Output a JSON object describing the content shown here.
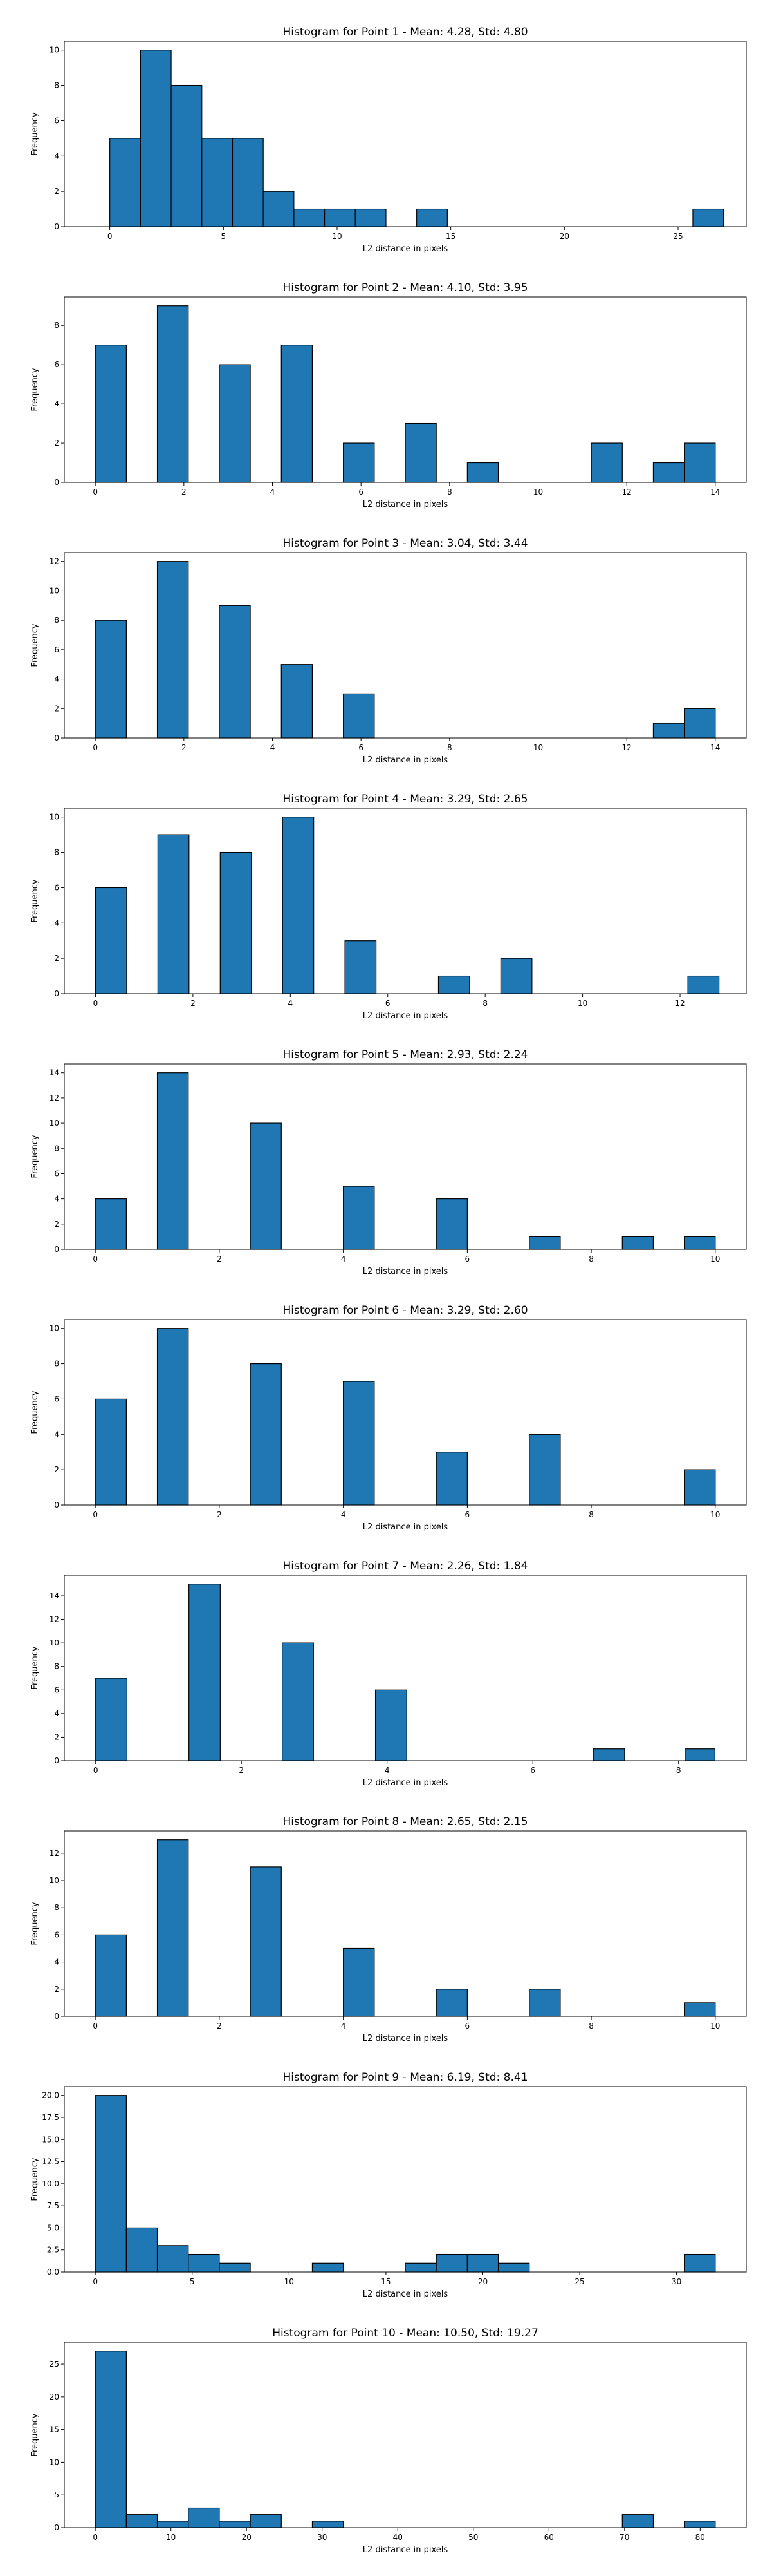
{
  "chart_data": [
    {
      "type": "bar",
      "title": "Histogram for Point 1 - Mean: 4.28, Std: 4.80",
      "xlabel": "L2 distance in pixels",
      "ylabel": "Frequency",
      "xlim": [
        -2,
        28
      ],
      "ylim": [
        0,
        10.5
      ],
      "xticks": [
        0,
        5,
        10,
        15,
        20,
        25
      ],
      "yticks": [
        0,
        2,
        4,
        6,
        8,
        10
      ],
      "bins": [
        {
          "x0": 0.0,
          "x1": 1.35,
          "y": 5
        },
        {
          "x0": 1.35,
          "x1": 2.7,
          "y": 10
        },
        {
          "x0": 2.7,
          "x1": 4.05,
          "y": 8
        },
        {
          "x0": 4.05,
          "x1": 5.4,
          "y": 5
        },
        {
          "x0": 5.4,
          "x1": 6.75,
          "y": 5
        },
        {
          "x0": 6.75,
          "x1": 8.1,
          "y": 2
        },
        {
          "x0": 8.1,
          "x1": 9.45,
          "y": 1
        },
        {
          "x0": 9.45,
          "x1": 10.8,
          "y": 1
        },
        {
          "x0": 10.8,
          "x1": 12.15,
          "y": 1
        },
        {
          "x0": 13.5,
          "x1": 14.85,
          "y": 1
        },
        {
          "x0": 25.65,
          "x1": 27.0,
          "y": 1
        }
      ]
    },
    {
      "type": "bar",
      "title": "Histogram for Point 2 - Mean: 4.10, Std: 3.95",
      "xlabel": "L2 distance in pixels",
      "ylabel": "Frequency",
      "xlim": [
        -0.7,
        14.7
      ],
      "ylim": [
        0,
        9.45
      ],
      "xticks": [
        0,
        2,
        4,
        6,
        8,
        10,
        12,
        14
      ],
      "yticks": [
        0,
        2,
        4,
        6,
        8
      ],
      "bins": [
        {
          "x0": 0.0,
          "x1": 0.7,
          "y": 7
        },
        {
          "x0": 1.4,
          "x1": 2.1,
          "y": 9
        },
        {
          "x0": 2.8,
          "x1": 3.5,
          "y": 6
        },
        {
          "x0": 4.2,
          "x1": 4.9,
          "y": 7
        },
        {
          "x0": 5.6,
          "x1": 6.3,
          "y": 2
        },
        {
          "x0": 7.0,
          "x1": 7.7,
          "y": 3
        },
        {
          "x0": 8.4,
          "x1": 9.1,
          "y": 1
        },
        {
          "x0": 11.2,
          "x1": 11.9,
          "y": 2
        },
        {
          "x0": 12.6,
          "x1": 13.3,
          "y": 1
        },
        {
          "x0": 13.3,
          "x1": 14.0,
          "y": 2
        }
      ]
    },
    {
      "type": "bar",
      "title": "Histogram for Point 3 - Mean: 3.04, Std: 3.44",
      "xlabel": "L2 distance in pixels",
      "ylabel": "Frequency",
      "xlim": [
        -0.7,
        14.7
      ],
      "ylim": [
        0,
        12.6
      ],
      "xticks": [
        0,
        2,
        4,
        6,
        8,
        10,
        12,
        14
      ],
      "yticks": [
        0,
        2,
        4,
        6,
        8,
        10,
        12
      ],
      "bins": [
        {
          "x0": 0.0,
          "x1": 0.7,
          "y": 8
        },
        {
          "x0": 1.4,
          "x1": 2.1,
          "y": 12
        },
        {
          "x0": 2.8,
          "x1": 3.5,
          "y": 9
        },
        {
          "x0": 4.2,
          "x1": 4.9,
          "y": 5
        },
        {
          "x0": 5.6,
          "x1": 6.3,
          "y": 3
        },
        {
          "x0": 12.6,
          "x1": 13.3,
          "y": 1
        },
        {
          "x0": 13.3,
          "x1": 14.0,
          "y": 2
        }
      ]
    },
    {
      "type": "bar",
      "title": "Histogram for Point 4 - Mean: 3.29, Std: 2.65",
      "xlabel": "L2 distance in pixels",
      "ylabel": "Frequency",
      "xlim": [
        -0.64,
        13.36
      ],
      "ylim": [
        0,
        10.5
      ],
      "xticks": [
        0,
        2,
        4,
        6,
        8,
        10,
        12
      ],
      "yticks": [
        0,
        2,
        4,
        6,
        8,
        10
      ],
      "bins": [
        {
          "x0": 0.0,
          "x1": 0.64,
          "y": 6
        },
        {
          "x0": 1.28,
          "x1": 1.92,
          "y": 9
        },
        {
          "x0": 2.56,
          "x1": 3.2,
          "y": 8
        },
        {
          "x0": 3.84,
          "x1": 4.48,
          "y": 10
        },
        {
          "x0": 5.12,
          "x1": 5.76,
          "y": 3
        },
        {
          "x0": 7.04,
          "x1": 7.68,
          "y": 1
        },
        {
          "x0": 8.32,
          "x1": 8.96,
          "y": 2
        },
        {
          "x0": 12.16,
          "x1": 12.8,
          "y": 1
        }
      ]
    },
    {
      "type": "bar",
      "title": "Histogram for Point 5 - Mean: 2.93, Std: 2.24",
      "xlabel": "L2 distance in pixels",
      "ylabel": "Frequency",
      "xlim": [
        -0.5,
        10.5
      ],
      "ylim": [
        0,
        14.7
      ],
      "xticks": [
        0,
        2,
        4,
        6,
        8,
        10
      ],
      "yticks": [
        0,
        2,
        4,
        6,
        8,
        10,
        12,
        14
      ],
      "bins": [
        {
          "x0": 0.0,
          "x1": 0.5,
          "y": 4
        },
        {
          "x0": 1.0,
          "x1": 1.5,
          "y": 14
        },
        {
          "x0": 2.5,
          "x1": 3.0,
          "y": 10
        },
        {
          "x0": 4.0,
          "x1": 4.5,
          "y": 5
        },
        {
          "x0": 5.5,
          "x1": 6.0,
          "y": 4
        },
        {
          "x0": 7.0,
          "x1": 7.5,
          "y": 1
        },
        {
          "x0": 8.5,
          "x1": 9.0,
          "y": 1
        },
        {
          "x0": 9.5,
          "x1": 10.0,
          "y": 1
        }
      ]
    },
    {
      "type": "bar",
      "title": "Histogram for Point 6 - Mean: 3.29, Std: 2.60",
      "xlabel": "L2 distance in pixels",
      "ylabel": "Frequency",
      "xlim": [
        -0.5,
        10.5
      ],
      "ylim": [
        0,
        10.5
      ],
      "xticks": [
        0,
        2,
        4,
        6,
        8,
        10
      ],
      "yticks": [
        0,
        2,
        4,
        6,
        8,
        10
      ],
      "bins": [
        {
          "x0": 0.0,
          "x1": 0.5,
          "y": 6
        },
        {
          "x0": 1.0,
          "x1": 1.5,
          "y": 10
        },
        {
          "x0": 2.5,
          "x1": 3.0,
          "y": 8
        },
        {
          "x0": 4.0,
          "x1": 4.5,
          "y": 7
        },
        {
          "x0": 5.5,
          "x1": 6.0,
          "y": 3
        },
        {
          "x0": 7.0,
          "x1": 7.5,
          "y": 4
        },
        {
          "x0": 9.5,
          "x1": 10.0,
          "y": 2
        }
      ]
    },
    {
      "type": "bar",
      "title": "Histogram for Point 7 - Mean: 2.26, Std: 1.84",
      "xlabel": "L2 distance in pixels",
      "ylabel": "Frequency",
      "xlim": [
        -0.43,
        8.93
      ],
      "ylim": [
        0,
        15.75
      ],
      "xticks": [
        0,
        2,
        4,
        6,
        8
      ],
      "yticks": [
        0,
        2,
        4,
        6,
        8,
        10,
        12,
        14
      ],
      "bins": [
        {
          "x0": 0.0,
          "x1": 0.43,
          "y": 7
        },
        {
          "x0": 1.28,
          "x1": 1.71,
          "y": 15
        },
        {
          "x0": 2.56,
          "x1": 2.99,
          "y": 10
        },
        {
          "x0": 3.84,
          "x1": 4.27,
          "y": 6
        },
        {
          "x0": 6.83,
          "x1": 7.26,
          "y": 1
        },
        {
          "x0": 8.09,
          "x1": 8.5,
          "y": 1
        }
      ]
    },
    {
      "type": "bar",
      "title": "Histogram for Point 8 - Mean: 2.65, Std: 2.15",
      "xlabel": "L2 distance in pixels",
      "ylabel": "Frequency",
      "xlim": [
        -0.5,
        10.5
      ],
      "ylim": [
        0,
        13.65
      ],
      "xticks": [
        0,
        2,
        4,
        6,
        8,
        10
      ],
      "yticks": [
        0,
        2,
        4,
        6,
        8,
        10,
        12
      ],
      "bins": [
        {
          "x0": 0.0,
          "x1": 0.5,
          "y": 6
        },
        {
          "x0": 1.0,
          "x1": 1.5,
          "y": 13
        },
        {
          "x0": 2.5,
          "x1": 3.0,
          "y": 11
        },
        {
          "x0": 4.0,
          "x1": 4.5,
          "y": 5
        },
        {
          "x0": 5.5,
          "x1": 6.0,
          "y": 2
        },
        {
          "x0": 7.0,
          "x1": 7.5,
          "y": 2
        },
        {
          "x0": 9.5,
          "x1": 10.0,
          "y": 1
        }
      ]
    },
    {
      "type": "bar",
      "title": "Histogram for Point 9 - Mean: 6.19, Std: 8.41",
      "xlabel": "L2 distance in pixels",
      "ylabel": "Frequency",
      "xlim": [
        -1.6,
        33.6
      ],
      "ylim": [
        0,
        21.0
      ],
      "xticks": [
        0,
        5,
        10,
        15,
        20,
        25,
        30
      ],
      "yticks": [
        0.0,
        2.5,
        5.0,
        7.5,
        10.0,
        12.5,
        15.0,
        17.5,
        20.0
      ],
      "ytick_labels": [
        "0.0",
        "2.5",
        "5.0",
        "7.5",
        "10.0",
        "12.5",
        "15.0",
        "17.5",
        "20.0"
      ],
      "bins": [
        {
          "x0": 0.0,
          "x1": 1.6,
          "y": 20
        },
        {
          "x0": 1.6,
          "x1": 3.2,
          "y": 5
        },
        {
          "x0": 3.2,
          "x1": 4.8,
          "y": 3
        },
        {
          "x0": 4.8,
          "x1": 6.4,
          "y": 2
        },
        {
          "x0": 6.4,
          "x1": 8.0,
          "y": 1
        },
        {
          "x0": 11.2,
          "x1": 12.8,
          "y": 1
        },
        {
          "x0": 16.0,
          "x1": 17.6,
          "y": 1
        },
        {
          "x0": 17.6,
          "x1": 19.2,
          "y": 2
        },
        {
          "x0": 19.2,
          "x1": 20.8,
          "y": 2
        },
        {
          "x0": 20.8,
          "x1": 22.4,
          "y": 1
        },
        {
          "x0": 30.4,
          "x1": 32.0,
          "y": 2
        }
      ]
    },
    {
      "type": "bar",
      "title": "Histogram for Point 10 - Mean: 10.50, Std: 19.27",
      "xlabel": "L2 distance in pixels",
      "ylabel": "Frequency",
      "xlim": [
        -4.1,
        86.1
      ],
      "ylim": [
        0,
        28.35
      ],
      "xticks": [
        0,
        10,
        20,
        30,
        40,
        50,
        60,
        70,
        80
      ],
      "yticks": [
        0,
        5,
        10,
        15,
        20,
        25
      ],
      "bins": [
        {
          "x0": 0.0,
          "x1": 4.1,
          "y": 27
        },
        {
          "x0": 4.1,
          "x1": 8.2,
          "y": 2
        },
        {
          "x0": 8.2,
          "x1": 12.3,
          "y": 1
        },
        {
          "x0": 12.3,
          "x1": 16.4,
          "y": 3
        },
        {
          "x0": 16.4,
          "x1": 20.5,
          "y": 1
        },
        {
          "x0": 20.5,
          "x1": 24.6,
          "y": 2
        },
        {
          "x0": 28.7,
          "x1": 32.8,
          "y": 1
        },
        {
          "x0": 69.7,
          "x1": 73.8,
          "y": 2
        },
        {
          "x0": 77.9,
          "x1": 82.0,
          "y": 1
        }
      ]
    }
  ]
}
